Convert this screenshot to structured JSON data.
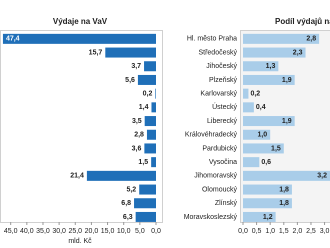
{
  "chart_data": [
    {
      "type": "bar",
      "orientation": "horizontal",
      "title": "Výdaje na VaV",
      "x_label": "mld. Kč",
      "color": "#1f6fb8",
      "x_reversed": true,
      "categories": [
        "Hl. město Praha",
        "Středočeský",
        "Jihočeský",
        "Plzeňský",
        "Karlovarský",
        "Ústecký",
        "Liberecký",
        "Královéhradecký",
        "Pardubický",
        "Vysočina",
        "Jihomoravský",
        "Olomoucký",
        "Zlínský",
        "Moravskoslezský"
      ],
      "values": [
        47.4,
        15.7,
        3.7,
        5.6,
        0.2,
        1.4,
        3.5,
        2.8,
        3.6,
        1.5,
        21.4,
        5.2,
        6.8,
        6.3
      ],
      "value_labels": [
        "47,4",
        "15,7",
        "3,7",
        "5,6",
        "0,2",
        "1,4",
        "3,5",
        "2,8",
        "3,6",
        "1,5",
        "21,4",
        "5,2",
        "6,8",
        "6,3"
      ],
      "xlim": [
        0,
        48
      ],
      "xticks": [
        {
          "value": 45,
          "label": "45,0"
        },
        {
          "value": 40,
          "label": "40,0"
        },
        {
          "value": 35,
          "label": "35,0"
        },
        {
          "value": 30,
          "label": "30,0"
        },
        {
          "value": 25,
          "label": "25,0"
        },
        {
          "value": 20,
          "label": "20,0"
        },
        {
          "value": 15,
          "label": "15,0"
        },
        {
          "value": 10,
          "label": "10,0"
        },
        {
          "value": 5,
          "label": "5,0"
        },
        {
          "value": 0,
          "label": "0,0"
        }
      ]
    },
    {
      "type": "bar",
      "orientation": "horizontal",
      "title": "Podíl výdajů na VaV",
      "color": "#a9cde9",
      "x_reversed": false,
      "values": [
        2.8,
        2.3,
        1.3,
        1.9,
        0.2,
        0.4,
        1.9,
        1.0,
        1.5,
        0.6,
        3.2,
        1.8,
        1.8,
        1.2
      ],
      "value_labels": [
        "2,8",
        "2,3",
        "1,3",
        "1,9",
        "0,2",
        "0,4",
        "1,9",
        "1,0",
        "1,5",
        "0,6",
        "3,2",
        "1,8",
        "1,8",
        "1,2"
      ],
      "xlim": [
        0,
        3.2
      ],
      "xticks": [
        {
          "value": 0,
          "label": "0,0"
        },
        {
          "value": 0.5,
          "label": "0,5"
        },
        {
          "value": 1,
          "label": "1,0"
        },
        {
          "value": 1.5,
          "label": "1,5"
        },
        {
          "value": 2,
          "label": "2,0"
        },
        {
          "value": 2.5,
          "label": "2,5"
        },
        {
          "value": 3,
          "label": "3,0"
        }
      ]
    }
  ]
}
